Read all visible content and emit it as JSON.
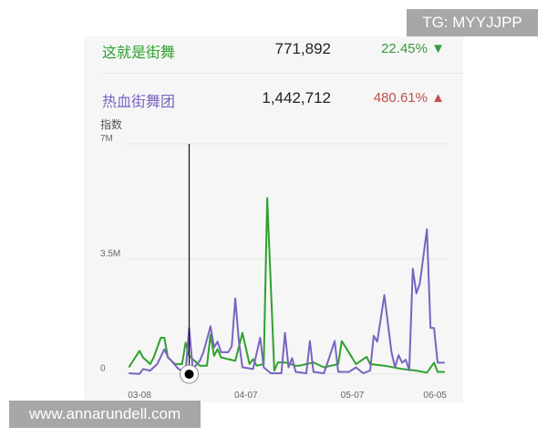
{
  "watermark_top": "TG: MYYJJPP",
  "watermark_bottom": "www.annarundell.com",
  "legend": [
    {
      "name": "这就是街舞",
      "value": "771,892",
      "change": "22.45%",
      "direction": "down",
      "color": "#2ea12e",
      "change_color": "#3a9a3a",
      "arrow_icon": "triangle-down-icon"
    },
    {
      "name": "热血街舞团",
      "value": "1,442,712",
      "change": "480.61%",
      "direction": "up",
      "color": "#7a64c0",
      "change_color": "#c0504d",
      "arrow_icon": "triangle-up-icon"
    }
  ],
  "chart_data": {
    "type": "line",
    "ylabel": "指数",
    "y_ticks": [
      "7M",
      "3.5M",
      "0"
    ],
    "y_tick_values": [
      7,
      3.5,
      0
    ],
    "y_unit": "M",
    "ylim": [
      0,
      7
    ],
    "x_ticks": [
      "03-08",
      "04-07",
      "05-07",
      "06-05"
    ],
    "xlim": [
      "03-05",
      "06-02"
    ],
    "grid": "horizontal",
    "crosshair": {
      "x": "03-22"
    },
    "series": [
      {
        "name": "这就是街舞",
        "color": "#2ea12e",
        "points": [
          [
            "03-05",
            0.2
          ],
          [
            "03-08",
            0.7
          ],
          [
            "03-09",
            0.5
          ],
          [
            "03-11",
            0.3
          ],
          [
            "03-12",
            0.5
          ],
          [
            "03-14",
            1.1
          ],
          [
            "03-15",
            1.1
          ],
          [
            "03-16",
            0.5
          ],
          [
            "03-18",
            0.3
          ],
          [
            "03-20",
            0.3
          ],
          [
            "03-21",
            0.95
          ],
          [
            "03-22",
            0.55
          ],
          [
            "03-23",
            0.45
          ],
          [
            "03-25",
            0.25
          ],
          [
            "03-27",
            0.25
          ],
          [
            "03-28",
            1.2
          ],
          [
            "03-29",
            0.55
          ],
          [
            "03-30",
            0.75
          ],
          [
            "03-31",
            0.5
          ],
          [
            "04-04",
            0.4
          ],
          [
            "04-06",
            1.25
          ],
          [
            "04-08",
            0.3
          ],
          [
            "04-09",
            0.45
          ],
          [
            "04-10",
            0.25
          ],
          [
            "04-12",
            0.3
          ],
          [
            "04-13",
            5.35
          ],
          [
            "04-15",
            0.1
          ],
          [
            "04-16",
            0.35
          ],
          [
            "04-18",
            0.35
          ],
          [
            "04-21",
            0.25
          ],
          [
            "04-22",
            0.25
          ],
          [
            "04-26",
            0.35
          ],
          [
            "04-29",
            0.2
          ],
          [
            "05-03",
            0.3
          ],
          [
            "05-04",
            1.0
          ],
          [
            "05-06",
            0.65
          ],
          [
            "05-08",
            0.3
          ],
          [
            "05-11",
            0.52
          ],
          [
            "05-12",
            0.3
          ],
          [
            "05-16",
            0.25
          ],
          [
            "05-21",
            0.15
          ],
          [
            "05-25",
            0.1
          ],
          [
            "05-28",
            0.04
          ],
          [
            "05-30",
            0.34
          ],
          [
            "05-31",
            0.06
          ],
          [
            "06-02",
            0.06
          ]
        ]
      },
      {
        "name": "热血街舞团",
        "color": "#7a64c0",
        "points": [
          [
            "03-05",
            0.02
          ],
          [
            "03-08",
            0
          ],
          [
            "03-09",
            0.15
          ],
          [
            "03-11",
            0.1
          ],
          [
            "03-13",
            0.3
          ],
          [
            "03-15",
            0.75
          ],
          [
            "03-16",
            0.52
          ],
          [
            "03-19",
            0.15
          ],
          [
            "03-21",
            0.06
          ],
          [
            "03-22",
            1.4
          ],
          [
            "03-23",
            0.15
          ],
          [
            "03-25",
            0.4
          ],
          [
            "03-26",
            0.66
          ],
          [
            "03-28",
            1.45
          ],
          [
            "03-29",
            0.8
          ],
          [
            "03-30",
            0.98
          ],
          [
            "03-31",
            0.66
          ],
          [
            "04-02",
            0.66
          ],
          [
            "04-03",
            0.84
          ],
          [
            "04-04",
            2.3
          ],
          [
            "04-05",
            1.0
          ],
          [
            "04-06",
            0.2
          ],
          [
            "04-09",
            0.15
          ],
          [
            "04-11",
            1.1
          ],
          [
            "04-12",
            0.2
          ],
          [
            "04-14",
            0.02
          ],
          [
            "04-17",
            0.02
          ],
          [
            "04-18",
            1.25
          ],
          [
            "04-19",
            0.2
          ],
          [
            "04-20",
            0.48
          ],
          [
            "04-21",
            0.06
          ],
          [
            "04-24",
            0.02
          ],
          [
            "04-25",
            1.0
          ],
          [
            "04-26",
            0.06
          ],
          [
            "04-29",
            0.02
          ],
          [
            "05-02",
            1.0
          ],
          [
            "05-03",
            0.06
          ],
          [
            "05-06",
            0.06
          ],
          [
            "05-08",
            0.2
          ],
          [
            "05-10",
            0.02
          ],
          [
            "05-12",
            0.1
          ],
          [
            "05-13",
            1.16
          ],
          [
            "05-14",
            0.98
          ],
          [
            "05-16",
            2.4
          ],
          [
            "05-18",
            0.66
          ],
          [
            "05-19",
            0.2
          ],
          [
            "05-20",
            0.57
          ],
          [
            "05-21",
            0.34
          ],
          [
            "05-22",
            0.43
          ],
          [
            "05-23",
            0.11
          ],
          [
            "05-24",
            3.2
          ],
          [
            "05-25",
            2.45
          ],
          [
            "05-26",
            2.75
          ],
          [
            "05-28",
            4.4
          ],
          [
            "05-29",
            1.4
          ],
          [
            "05-30",
            1.4
          ],
          [
            "05-31",
            0.34
          ],
          [
            "06-02",
            0.34
          ]
        ]
      }
    ]
  }
}
